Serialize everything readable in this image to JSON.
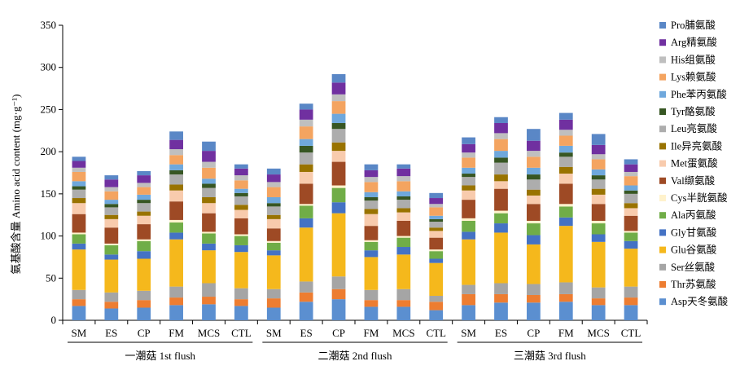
{
  "chart_data": {
    "type": "bar",
    "stacked": true,
    "ylabel": "氨基酸含量 Amino acid content (mg·g⁻¹)",
    "ylim": [
      0,
      350
    ],
    "yticks": [
      0,
      50,
      100,
      150,
      200,
      250,
      300,
      350
    ],
    "grid": false,
    "legend_position": "right",
    "groups": [
      {
        "label": "一潮菇 1st flush",
        "categories": [
          "SM",
          "ES",
          "CP",
          "FM",
          "MCS",
          "CTL"
        ]
      },
      {
        "label": "二潮菇 2nd flush",
        "categories": [
          "SM",
          "ES",
          "CP",
          "FM",
          "MCS",
          "CTL"
        ]
      },
      {
        "label": "三潮菇 3rd flush",
        "categories": [
          "SM",
          "ES",
          "CP",
          "FM",
          "MCS",
          "CTL"
        ]
      }
    ],
    "series": [
      {
        "name": "Asp天冬氨酸",
        "color": "#5b8fd0",
        "values": [
          17,
          14,
          15,
          18,
          19,
          17,
          15,
          22,
          25,
          16,
          16,
          12,
          18,
          21,
          21,
          22,
          18,
          18
        ]
      },
      {
        "name": "Thr苏氨酸",
        "color": "#ed7d31",
        "values": [
          8,
          8,
          9,
          9,
          9,
          8,
          11,
          11,
          12,
          8,
          8,
          10,
          13,
          10,
          9,
          9,
          8,
          9
        ]
      },
      {
        "name": "Ser丝氨酸",
        "color": "#a5a5a5",
        "values": [
          11,
          11,
          11,
          13,
          16,
          13,
          11,
          13,
          15,
          12,
          13,
          7,
          11,
          13,
          13,
          14,
          13,
          13
        ]
      },
      {
        "name": "Glu谷氨酸",
        "color": "#f5b81c",
        "values": [
          48,
          39,
          38,
          56,
          39,
          43,
          40,
          64,
          75,
          39,
          41,
          39,
          54,
          60,
          47,
          67,
          54,
          45
        ]
      },
      {
        "name": "Gly甘氨酸",
        "color": "#4472c4",
        "values": [
          7,
          6,
          9,
          8,
          8,
          8,
          6,
          11,
          13,
          8,
          9,
          5,
          9,
          11,
          11,
          10,
          9,
          9
        ]
      },
      {
        "name": "Ala丙氨酸",
        "color": "#70ad47",
        "values": [
          11,
          11,
          12,
          12,
          12,
          11,
          9,
          15,
          17,
          10,
          11,
          9,
          13,
          12,
          14,
          13,
          13,
          10
        ]
      },
      {
        "name": "Cys半胱氨酸",
        "color": "#fff2cc",
        "values": [
          2,
          2,
          2,
          3,
          2,
          2,
          2,
          2,
          3,
          2,
          2,
          2,
          3,
          3,
          3,
          3,
          3,
          2
        ]
      },
      {
        "name": "Val缬氨酸",
        "color": "#9e4a25",
        "values": [
          22,
          19,
          18,
          22,
          22,
          19,
          15,
          24,
          28,
          17,
          18,
          14,
          22,
          26,
          20,
          24,
          20,
          18
        ]
      },
      {
        "name": "Met蛋氨酸",
        "color": "#f8cbad",
        "values": [
          13,
          10,
          10,
          13,
          12,
          10,
          11,
          14,
          13,
          14,
          10,
          8,
          11,
          9,
          10,
          12,
          11,
          9
        ]
      },
      {
        "name": "Ile异亮氨酸",
        "color": "#997300",
        "values": [
          6,
          5,
          5,
          7,
          7,
          6,
          5,
          9,
          10,
          6,
          5,
          4,
          6,
          8,
          7,
          8,
          7,
          6
        ]
      },
      {
        "name": "Leu亮氨酸",
        "color": "#adadad",
        "values": [
          10,
          9,
          10,
          12,
          11,
          10,
          10,
          14,
          16,
          10,
          10,
          7,
          10,
          14,
          12,
          12,
          11,
          11
        ]
      },
      {
        "name": "Tyr酪氨酸",
        "color": "#375623",
        "values": [
          4,
          4,
          4,
          5,
          5,
          4,
          4,
          8,
          7,
          4,
          4,
          3,
          4,
          6,
          6,
          5,
          5,
          4
        ]
      },
      {
        "name": "Phe苯丙氨酸",
        "color": "#6fa8dc",
        "values": [
          6,
          5,
          6,
          7,
          6,
          5,
          7,
          8,
          11,
          6,
          6,
          4,
          7,
          8,
          8,
          8,
          7,
          6
        ]
      },
      {
        "name": "Lys赖氨酸",
        "color": "#f4a460",
        "values": [
          11,
          10,
          9,
          11,
          13,
          10,
          12,
          15,
          15,
          12,
          12,
          10,
          12,
          14,
          13,
          12,
          12,
          11
        ]
      },
      {
        "name": "His组氨酸",
        "color": "#bfbfbf",
        "values": [
          5,
          5,
          5,
          7,
          7,
          6,
          6,
          8,
          8,
          6,
          6,
          4,
          6,
          7,
          7,
          7,
          6,
          5
        ]
      },
      {
        "name": "Arg精氨酸",
        "color": "#7030a0",
        "values": [
          8,
          9,
          9,
          11,
          13,
          8,
          9,
          12,
          14,
          8,
          9,
          7,
          10,
          12,
          12,
          12,
          11,
          9
        ]
      },
      {
        "name": "Pro脯氨酸",
        "color": "#5a87c6",
        "values": [
          5,
          5,
          5,
          10,
          11,
          5,
          7,
          7,
          10,
          7,
          5,
          6,
          8,
          7,
          14,
          8,
          13,
          6
        ]
      }
    ]
  }
}
